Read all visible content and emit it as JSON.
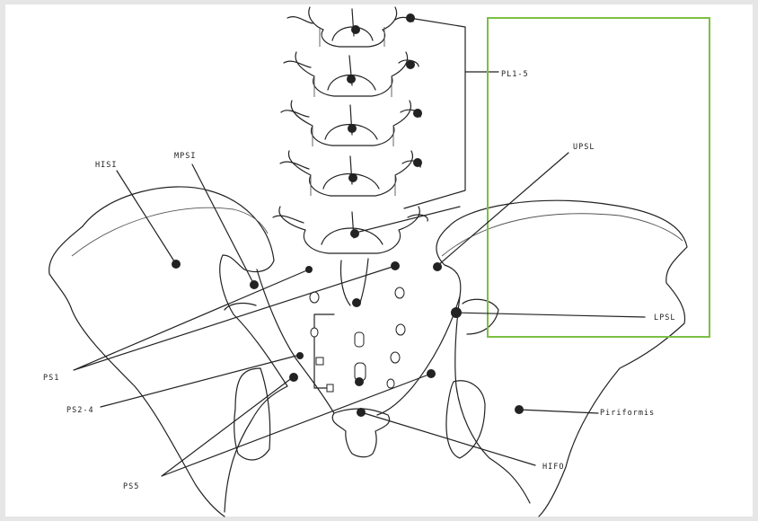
{
  "labels": {
    "hisi": "HISI",
    "mpsi": "MPSI",
    "pl15": "PL1-5",
    "upsl": "UPSL",
    "lpsl": "LPSL",
    "ps1": "PS1",
    "ps24": "PS2-4",
    "ps5": "PS5",
    "piriformis": "Piriformis",
    "hifo": "HIFO"
  },
  "highlight_color": "#7bc043"
}
